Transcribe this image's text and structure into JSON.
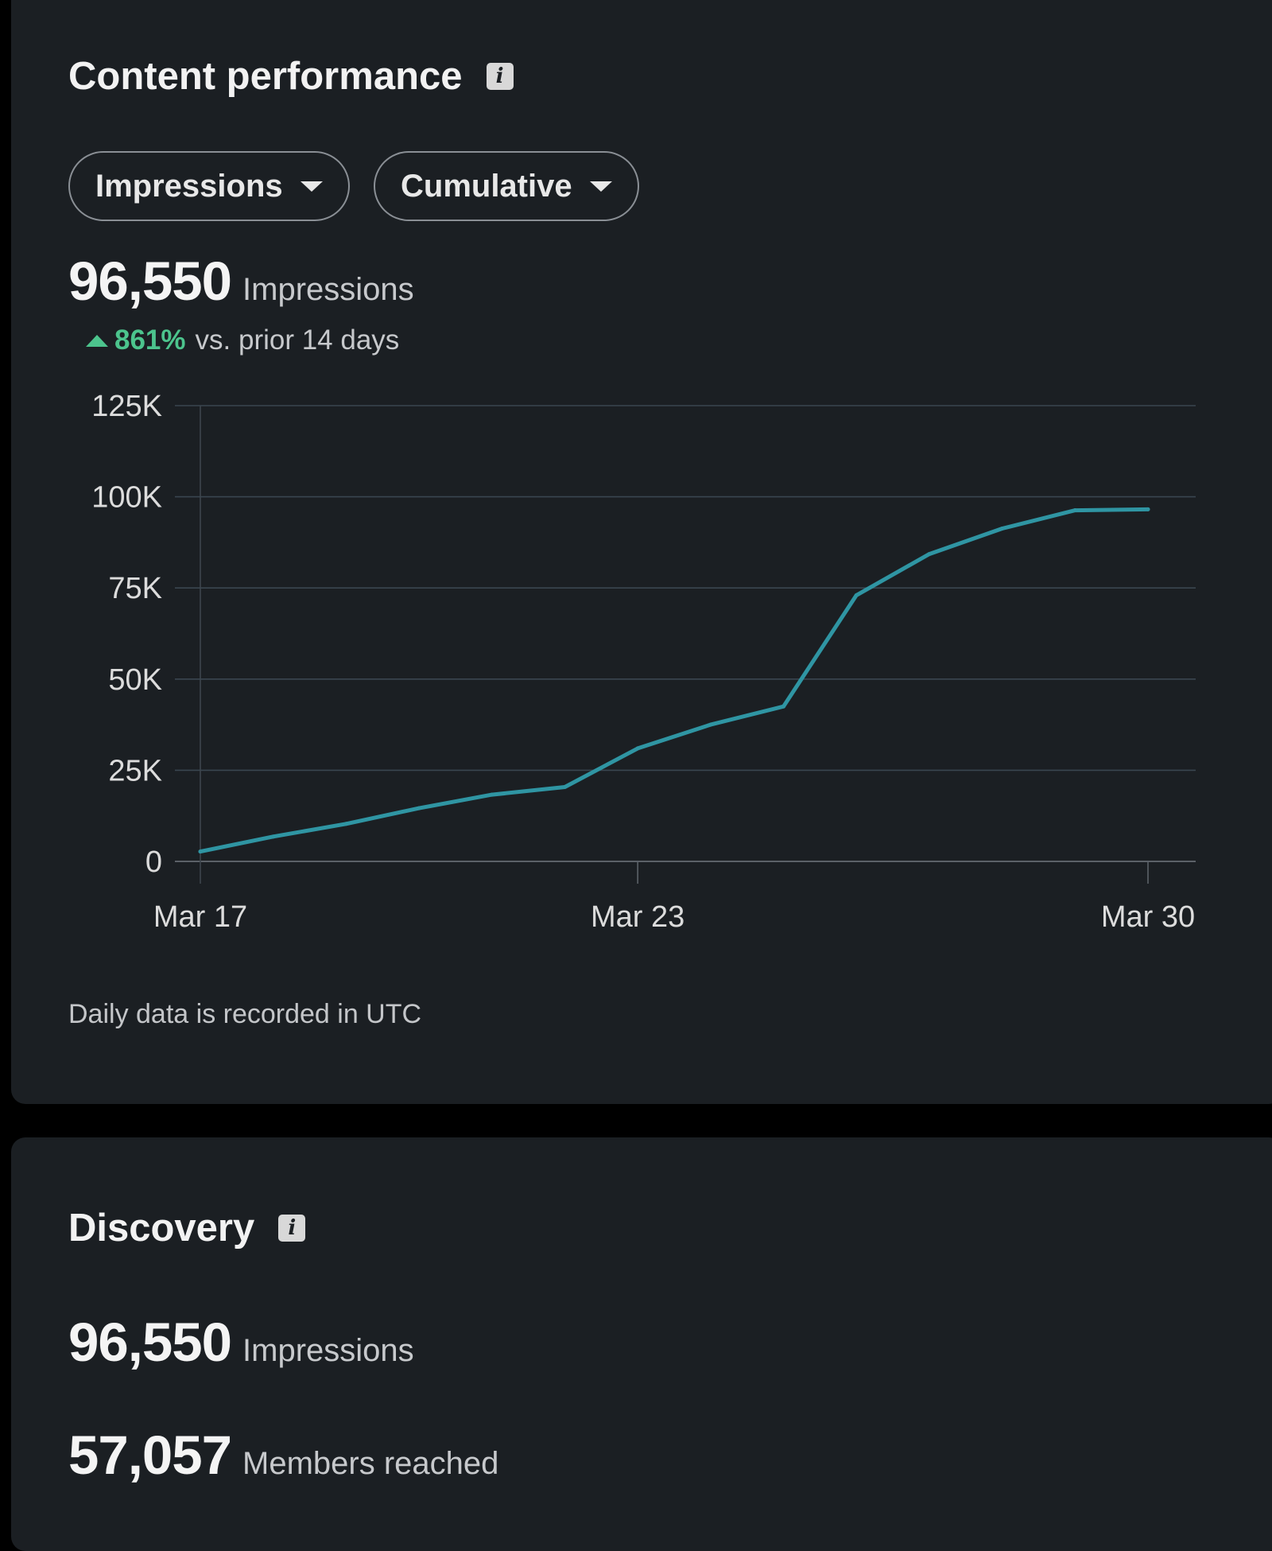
{
  "content_performance": {
    "title": "Content performance",
    "icon": "info-icon",
    "dropdowns": {
      "metric": {
        "label": "Impressions",
        "icon": "chevron-down-icon"
      },
      "mode": {
        "label": "Cumulative",
        "icon": "chevron-down-icon"
      }
    },
    "summary": {
      "value": "96,550",
      "label": "Impressions",
      "delta_percent": "861%",
      "delta_text": "vs. prior 14 days",
      "delta_direction": "up",
      "delta_color": "#4cc48d"
    },
    "footnote": "Daily data is recorded in UTC"
  },
  "chart_data": {
    "type": "line",
    "title": "",
    "xlabel": "",
    "ylabel": "",
    "x": [
      "Mar 17",
      "Mar 18",
      "Mar 19",
      "Mar 20",
      "Mar 21",
      "Mar 22",
      "Mar 23",
      "Mar 24",
      "Mar 25",
      "Mar 26",
      "Mar 27",
      "Mar 28",
      "Mar 29",
      "Mar 30"
    ],
    "series": [
      {
        "values": [
          2700,
          6800,
          10300,
          14600,
          18300,
          20400,
          31000,
          37500,
          42500,
          73000,
          84300,
          91300,
          96300,
          96550
        ],
        "color": "#2f95a3"
      }
    ],
    "x_ticks": [
      "Mar 17",
      "Mar 23",
      "Mar 30"
    ],
    "y_ticks": [
      "0",
      "25K",
      "50K",
      "75K",
      "100K",
      "125K"
    ],
    "y_tick_values": [
      0,
      25000,
      50000,
      75000,
      100000,
      125000
    ],
    "ylim": [
      0,
      125000
    ],
    "grid": true,
    "gridline_color": "#3a4650"
  },
  "discovery": {
    "title": "Discovery",
    "icon": "info-icon",
    "impressions": {
      "value": "96,550",
      "label": "Impressions"
    },
    "members_reached": {
      "value": "57,057",
      "label": "Members reached"
    }
  }
}
